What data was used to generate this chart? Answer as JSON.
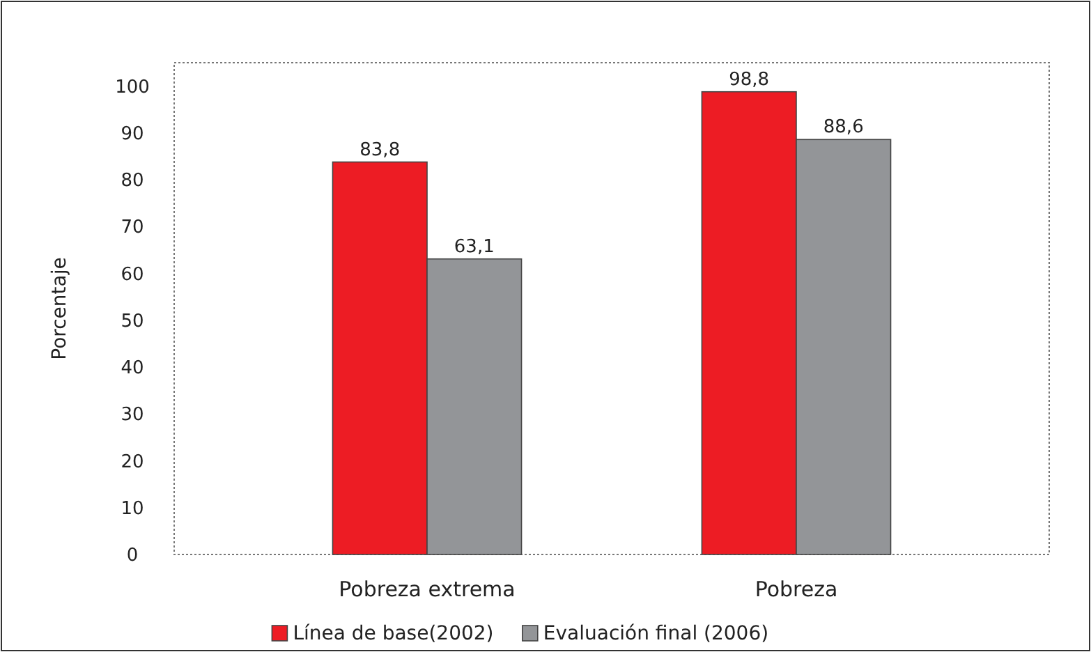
{
  "chart_data": {
    "type": "bar",
    "ylabel": "Porcentaje",
    "categories": [
      "Pobreza extrema",
      "Pobreza"
    ],
    "series": [
      {
        "name": "Línea de base(2002)",
        "color": "#ed1c24",
        "values": [
          83.8,
          98.8
        ],
        "value_labels": [
          "83,8",
          "98,8"
        ]
      },
      {
        "name": "Evaluación final (2006)",
        "color": "#939598",
        "values": [
          63.1,
          88.6
        ],
        "value_labels": [
          "63,1",
          "88,6"
        ]
      }
    ],
    "ylim": [
      0,
      105
    ],
    "yticks": [
      0,
      10,
      20,
      30,
      40,
      50,
      60,
      70,
      80,
      90,
      100
    ],
    "grid": false,
    "legend": "bottom"
  }
}
